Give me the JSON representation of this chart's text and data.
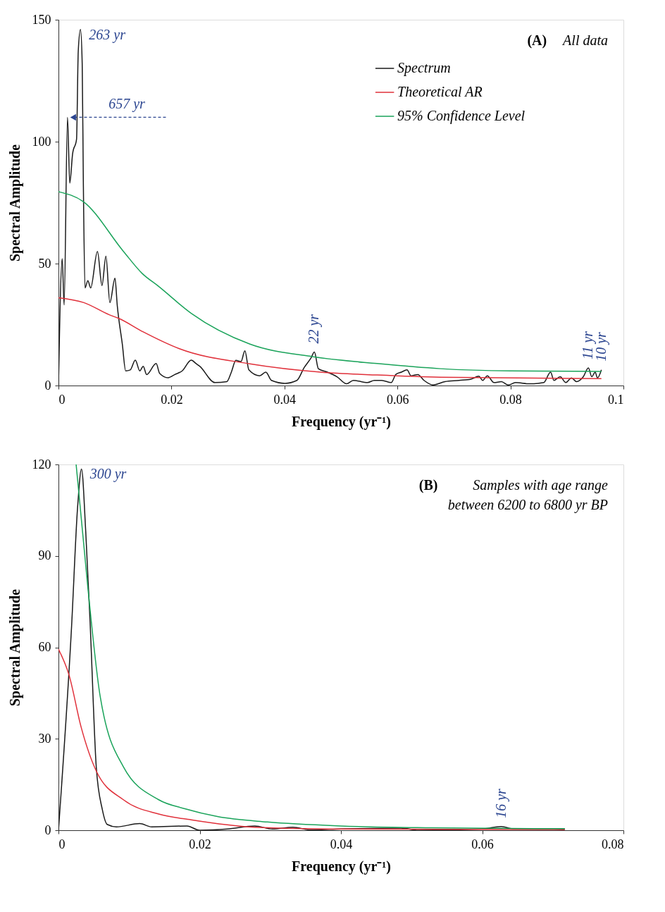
{
  "chart_data": [
    {
      "type": "line",
      "xlabel": "Frequency (yr⁻¹)",
      "ylabel": "Spectral Amplitude",
      "xlim": [
        0,
        0.1
      ],
      "ylim": [
        0,
        150
      ],
      "xticks": [
        0,
        0.02,
        0.04,
        0.06,
        0.08,
        0.1
      ],
      "yticks": [
        0,
        50,
        100,
        150
      ],
      "grid": false,
      "legend": "top right",
      "line_style": "solid",
      "marker": "none",
      "series": [
        {
          "name": "Spectrum",
          "color": "#1a1a1a",
          "x": [
            0,
            0.00066,
            0.001,
            0.0016,
            0.002,
            0.0025,
            0.0032,
            0.0035,
            0.0039,
            0.0042,
            0.0044,
            0.0047,
            0.0052,
            0.0057,
            0.0069,
            0.0077,
            0.0084,
            0.0091,
            0.01,
            0.0104,
            0.0113,
            0.0119,
            0.0127,
            0.0136,
            0.0144,
            0.015,
            0.0156,
            0.0173,
            0.0179,
            0.0194,
            0.0206,
            0.0219,
            0.0235,
            0.0244,
            0.025,
            0.0277,
            0.0298,
            0.0306,
            0.0314,
            0.0323,
            0.033,
            0.0337,
            0.0356,
            0.0367,
            0.0377,
            0.0401,
            0.0422,
            0.0435,
            0.0447,
            0.0453,
            0.046,
            0.0476,
            0.0493,
            0.051,
            0.0522,
            0.0547,
            0.0559,
            0.0572,
            0.0589,
            0.0597,
            0.0607,
            0.0617,
            0.0624,
            0.0636,
            0.0647,
            0.0663,
            0.0684,
            0.0709,
            0.073,
            0.0744,
            0.0751,
            0.0759,
            0.0771,
            0.0784,
            0.0796,
            0.0809,
            0.0834,
            0.0859,
            0.0871,
            0.0877,
            0.0888,
            0.0898,
            0.0908,
            0.0917,
            0.0929,
            0.0938,
            0.0944,
            0.095,
            0.0954,
            0.0961
          ],
          "values": [
            0,
            52,
            33,
            110,
            83,
            95,
            101,
            137,
            146,
            132,
            84,
            40,
            43,
            40,
            55,
            41,
            53,
            34,
            44,
            33,
            17,
            6,
            6.4,
            10.4,
            6,
            7.9,
            4.5,
            9,
            5,
            3.2,
            4.5,
            6,
            10.4,
            8.9,
            7.9,
            1.2,
            1.6,
            5.5,
            10.3,
            9.8,
            14.2,
            6.4,
            4,
            5.5,
            2.1,
            0.9,
            2.1,
            7.4,
            11.3,
            13.7,
            6.9,
            5.5,
            3.6,
            0.7,
            2.1,
            1.2,
            2.1,
            2.1,
            1.2,
            4.5,
            5.5,
            6.4,
            4,
            4.5,
            2.1,
            0.2,
            1.6,
            2.1,
            2.6,
            3.8,
            2.1,
            4,
            1.2,
            1.6,
            0.2,
            1.2,
            0.7,
            1.2,
            5.5,
            2.1,
            3.6,
            1.2,
            3.1,
            1.6,
            3.6,
            7.2,
            3.6,
            5.5,
            3.1,
            6.4
          ]
        },
        {
          "name": "Theoretical AR",
          "color": "#e0303a",
          "x": [
            0,
            0.0045,
            0.009,
            0.0106,
            0.015,
            0.0214,
            0.0339,
            0.0464,
            0.0564,
            0.0676,
            0.0961
          ],
          "values": [
            36,
            34,
            29,
            27.6,
            22,
            15.1,
            8.9,
            5.5,
            4.3,
            3.4,
            2.8
          ]
        },
        {
          "name": "95% Confidence Level",
          "color": "#1aa35a",
          "x": [
            0,
            0.0044,
            0.0115,
            0.0148,
            0.0177,
            0.0235,
            0.0339,
            0.0451,
            0.0564,
            0.0676,
            0.08,
            0.0961
          ],
          "values": [
            79.5,
            75.4,
            55,
            46,
            40.7,
            29.6,
            17,
            11.8,
            9,
            6.9,
            6,
            5.8
          ]
        }
      ],
      "annotations": [
        "(A)",
        "All data",
        {
          "text": "263 yr",
          "x": 0.0039,
          "y": 146
        },
        {
          "text": "657 yr",
          "x": 0.0016,
          "y": 110
        },
        {
          "text": "22 yr",
          "x": 0.0453,
          "y": 13.7
        },
        {
          "text": "11 yr",
          "x": 0.0938,
          "y": 7.2
        },
        {
          "text": "10 yr",
          "x": 0.0961,
          "y": 6.4
        }
      ]
    },
    {
      "type": "line",
      "xlabel": "Frequency (yr⁻¹)",
      "ylabel": "Spectral Amplitude",
      "xlim": [
        0,
        0.08
      ],
      "ylim": [
        0,
        120
      ],
      "xticks": [
        0,
        0.02,
        0.04,
        0.06,
        0.08
      ],
      "yticks": [
        0,
        30,
        60,
        90,
        120
      ],
      "grid": false,
      "legend": false,
      "line_style": "solid",
      "marker": "none",
      "series": [
        {
          "color": "#1a1a1a",
          "x": [
            0,
            0.00186,
            0.0027,
            0.00326,
            0.00386,
            0.0045,
            0.00535,
            0.0062,
            0.0069,
            0.0082,
            0.0115,
            0.0132,
            0.0182,
            0.02,
            0.0239,
            0.0278,
            0.0303,
            0.0332,
            0.0357,
            0.04,
            0.0485,
            0.051,
            0.0599,
            0.0627,
            0.0645,
            0.0717
          ],
          "values": [
            0,
            67,
            105.7,
            118.5,
            98,
            67,
            20.8,
            6.9,
            1.9,
            1.1,
            2.2,
            1.1,
            1.4,
            0,
            0.4,
            1.4,
            0.4,
            1,
            0.1,
            0.4,
            0.7,
            0,
            0.4,
            1.2,
            0.4,
            0.4
          ]
        },
        {
          "color": "#e0303a",
          "x": [
            0,
            0.0015,
            0.0032,
            0.0054,
            0.0092,
            0.0142,
            0.0188,
            0.0278,
            0.04,
            0.0717
          ],
          "values": [
            59.4,
            50.9,
            33.9,
            19.2,
            10,
            5.3,
            3.4,
            1,
            0.4,
            0.2
          ]
        },
        {
          "color": "#1aa35a",
          "x": [
            0.0025,
            0.0042,
            0.0059,
            0.0092,
            0.0142,
            0.018,
            0.0225,
            0.0296,
            0.04,
            0.0528,
            0.0717
          ],
          "values": [
            120,
            78.7,
            44,
            20.8,
            10,
            7,
            4.5,
            2.7,
            1.4,
            0.8,
            0.5
          ]
        }
      ],
      "annotations": [
        "(B)",
        "Samples with age range",
        "between 6200 to 6800 yr BP",
        {
          "text": "300 yr",
          "x": 0.00326,
          "y": 118.5
        },
        {
          "text": "16 yr",
          "x": 0.0627,
          "y": 1.2
        }
      ]
    }
  ]
}
